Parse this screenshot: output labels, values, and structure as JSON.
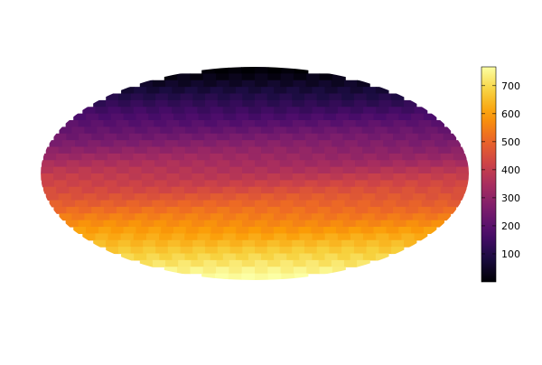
{
  "chart_data": {
    "type": "heatmap",
    "projection": "mollweide",
    "title": "",
    "colormap": "inferno",
    "colormap_stops": [
      "#000004",
      "#1b0c41",
      "#4a0c6b",
      "#781c6d",
      "#a52c60",
      "#cf4446",
      "#ed6925",
      "#fb9b06",
      "#f7d13d",
      "#fcffa4"
    ],
    "value_range": [
      0,
      767
    ],
    "pixel_count": 768,
    "pixel_index_order": "ring (top to bottom)",
    "colorbar": {
      "placement": "right",
      "ticks": [
        100,
        200,
        300,
        400,
        500,
        600,
        700
      ],
      "tick_labels": [
        "100",
        "200",
        "300",
        "400",
        "500",
        "600",
        "700"
      ]
    },
    "grid": false
  }
}
